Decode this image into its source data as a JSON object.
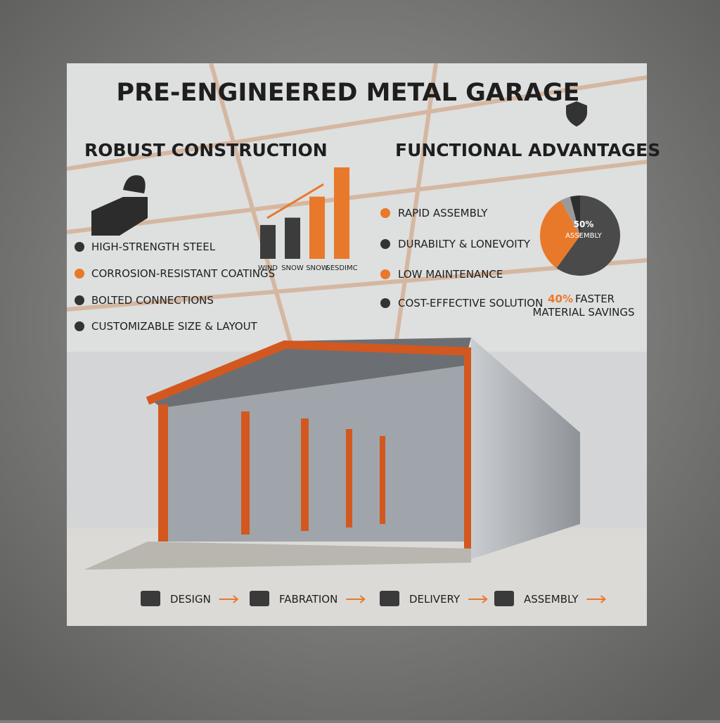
{
  "title": "PRE-ENGINEERED METAL GARAGE",
  "robust": {
    "heading": "ROBUST CONSTRUCTION",
    "items": [
      "HIGH-STRENGTH STEEL",
      "CORROSION-RESISTANT COATINGS",
      "BOLTED CONNECTIONS",
      "CUSTOMIZABLE SIZE & LAYOUT"
    ],
    "chart": {
      "type": "bar",
      "categories": [
        "WIND",
        "SNOW",
        "SNOW",
        "SESDIMC"
      ],
      "values": [
        37,
        45,
        68,
        100
      ],
      "colors": [
        "#3c3c3c",
        "#3c3c3c",
        "#e8792a",
        "#e8792a"
      ]
    }
  },
  "functional": {
    "heading": "FUNCTIONAL ADVANTAGES",
    "items": [
      "RAPID ASSEMBLY",
      "DURABILTY & LONEVOITY",
      "LOW MAINTENANCE",
      "COST-EFFECTIVE SOLUTION"
    ],
    "chart": {
      "type": "pie",
      "values": [
        60,
        32,
        4,
        4
      ],
      "colors": [
        "#4a4a4a",
        "#e8792a",
        "#9a9a9a",
        "#2e2e2e"
      ],
      "label_pct": "50%",
      "label_text": "ASSEMBLY"
    },
    "stat_pct": "40%",
    "stat_text": "FASTER",
    "stat_sub": "MATERIAL SAVINGS"
  },
  "steps": [
    "DESIGN",
    "FABRATION",
    "DELIVERY",
    "ASSEMBLY"
  ]
}
